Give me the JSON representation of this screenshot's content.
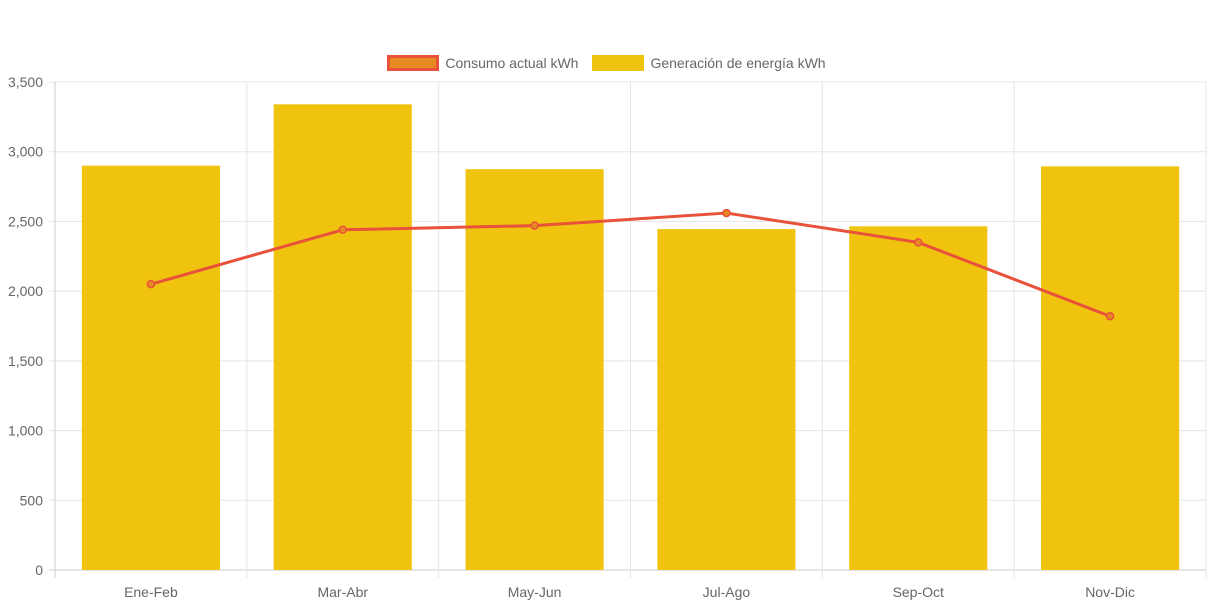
{
  "chart_data": {
    "type": "bar",
    "categories": [
      "Ene-Feb",
      "Mar-Abr",
      "May-Jun",
      "Jul-Ago",
      "Sep-Oct",
      "Nov-Dic"
    ],
    "series": [
      {
        "name": "Consumo actual kWh",
        "type": "line",
        "values": [
          2050,
          2440,
          2470,
          2560,
          2350,
          1820
        ],
        "color": "#e8513a",
        "fill": "#e68a21"
      },
      {
        "name": "Generación de energía kWh",
        "type": "bar",
        "values": [
          2900,
          3340,
          2875,
          2445,
          2465,
          2895
        ],
        "color": "#f0c40e"
      }
    ],
    "yticks": [
      0,
      500,
      1000,
      1500,
      2000,
      2500,
      3000,
      3500
    ],
    "ytick_labels": [
      "0",
      "500",
      "1,000",
      "1,500",
      "2,000",
      "2,500",
      "3,000",
      "3,500"
    ],
    "ylim": [
      0,
      3500
    ],
    "grid": true,
    "legend_position": "top-center",
    "title": "",
    "xlabel": "",
    "ylabel": ""
  }
}
